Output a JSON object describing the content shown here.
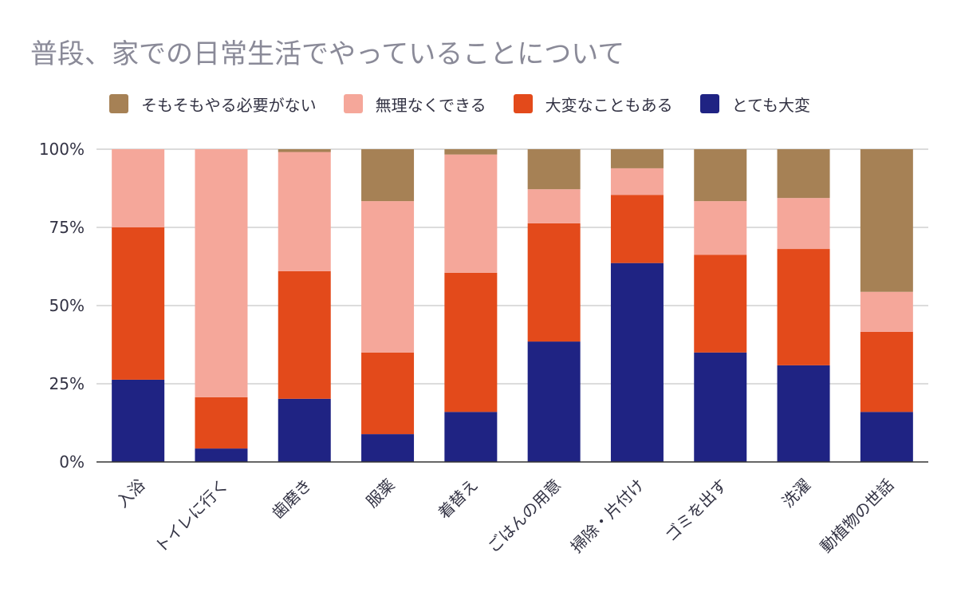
{
  "chart_data": {
    "type": "bar",
    "stacked": true,
    "percent_stacked": true,
    "title": "普段、家での日常生活でやっていることについて",
    "categories": [
      "入浴",
      "トイレに行く",
      "歯磨き",
      "服薬",
      "着替え",
      "ごはんの用意",
      "掃除・片付け",
      "ゴミを出す",
      "洗濯",
      "動植物の世話"
    ],
    "series": [
      {
        "name": "とても大変",
        "color": "#1f2383",
        "values": [
          26.3,
          4.3,
          20.2,
          8.9,
          16.0,
          38.5,
          63.6,
          35.0,
          30.9,
          16.0
        ]
      },
      {
        "name": "大変なこともある",
        "color": "#e34a1b",
        "values": [
          48.7,
          16.4,
          40.8,
          26.1,
          44.5,
          37.8,
          21.8,
          31.2,
          37.2,
          25.6
        ]
      },
      {
        "name": "無理なくできる",
        "color": "#f5a79a",
        "values": [
          25.0,
          79.3,
          38.1,
          48.4,
          37.8,
          10.9,
          8.5,
          17.2,
          16.3,
          12.8
        ]
      },
      {
        "name": "そもそもやる必要がない",
        "color": "#a68155",
        "values": [
          0.0,
          0.0,
          0.9,
          16.6,
          1.7,
          12.8,
          6.1,
          16.6,
          15.6,
          45.6
        ]
      }
    ],
    "legend_order": [
      "そもそもやる必要がない",
      "無理なくできる",
      "大変なこともある",
      "とても大変"
    ],
    "yticks": [
      "0%",
      "25%",
      "50%",
      "75%",
      "100%"
    ],
    "ylim": [
      0,
      100
    ],
    "legend_position": "top",
    "grid": true
  }
}
